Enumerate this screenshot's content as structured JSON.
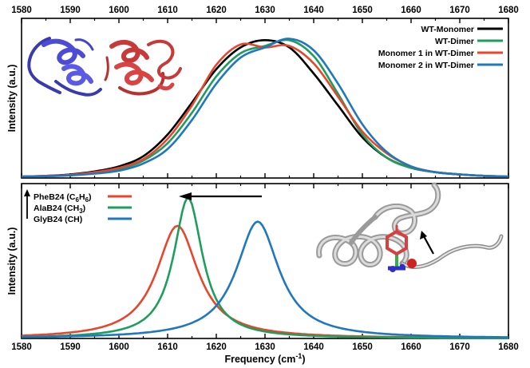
{
  "chart_data": [
    {
      "type": "line",
      "xlim": [
        1580,
        1680
      ],
      "ylim": [
        0,
        1.1
      ],
      "x_ticks": [
        1580,
        1590,
        1600,
        1610,
        1620,
        1630,
        1640,
        1650,
        1660,
        1670,
        1680
      ],
      "x_tick_labels": [
        "1580",
        "1590",
        "1600",
        "1610",
        "1620",
        "1630",
        "1640",
        "1650",
        "1660",
        "1670",
        "1680"
      ],
      "top_tick_labels_shown": true,
      "bottom_tick_labels_shown": false,
      "ylabel": "Intensity (a.u.)",
      "legend_position": "top-right",
      "inset": "protein dimer structure (blue and red ribbons)",
      "series": [
        {
          "name": "WT-Monomer",
          "color": "#000000",
          "x": [
            1580,
            1585,
            1590,
            1595,
            1600,
            1605,
            1610,
            1615,
            1620,
            1625,
            1630,
            1635,
            1640,
            1645,
            1650,
            1655,
            1660,
            1665,
            1670,
            1675,
            1680
          ],
          "y": [
            0.01,
            0.015,
            0.025,
            0.045,
            0.08,
            0.15,
            0.3,
            0.52,
            0.75,
            0.9,
            0.95,
            0.9,
            0.72,
            0.5,
            0.28,
            0.14,
            0.07,
            0.04,
            0.025,
            0.015,
            0.01
          ]
        },
        {
          "name": "WT-Dimer",
          "color": "#1e9e5c",
          "x": [
            1580,
            1585,
            1590,
            1595,
            1600,
            1605,
            1610,
            1615,
            1620,
            1625,
            1630,
            1635,
            1640,
            1645,
            1650,
            1655,
            1660,
            1665,
            1670,
            1675,
            1680
          ],
          "y": [
            0.01,
            0.013,
            0.02,
            0.035,
            0.06,
            0.12,
            0.24,
            0.45,
            0.7,
            0.86,
            0.91,
            0.95,
            0.84,
            0.58,
            0.3,
            0.14,
            0.07,
            0.04,
            0.025,
            0.015,
            0.01
          ]
        },
        {
          "name": "Monomer 1 in WT-Dimer",
          "color": "#e8452c",
          "x": [
            1580,
            1585,
            1590,
            1595,
            1600,
            1605,
            1610,
            1615,
            1620,
            1625,
            1630,
            1635,
            1640,
            1645,
            1650,
            1655,
            1660,
            1665,
            1670,
            1675,
            1680
          ],
          "y": [
            0.01,
            0.015,
            0.022,
            0.04,
            0.07,
            0.13,
            0.27,
            0.5,
            0.78,
            0.92,
            0.9,
            0.91,
            0.79,
            0.56,
            0.32,
            0.17,
            0.08,
            0.04,
            0.025,
            0.015,
            0.01
          ]
        },
        {
          "name": "Monomer 2 in WT-Dimer",
          "color": "#1f77c0",
          "x": [
            1580,
            1585,
            1590,
            1595,
            1600,
            1605,
            1610,
            1615,
            1620,
            1625,
            1630,
            1635,
            1640,
            1645,
            1650,
            1655,
            1660,
            1665,
            1670,
            1675,
            1680
          ],
          "y": [
            0.01,
            0.012,
            0.018,
            0.03,
            0.05,
            0.1,
            0.2,
            0.4,
            0.65,
            0.83,
            0.9,
            0.96,
            0.88,
            0.65,
            0.37,
            0.18,
            0.08,
            0.04,
            0.025,
            0.015,
            0.01
          ]
        }
      ]
    },
    {
      "type": "line",
      "xlim": [
        1580,
        1680
      ],
      "ylim": [
        0,
        1.1
      ],
      "x_ticks": [
        1580,
        1590,
        1600,
        1610,
        1620,
        1630,
        1640,
        1650,
        1660,
        1670,
        1680
      ],
      "x_tick_labels": [
        "1580",
        "1590",
        "1600",
        "1610",
        "1620",
        "1630",
        "1640",
        "1650",
        "1660",
        "1670",
        "1680"
      ],
      "xlabel_main": "Frequency (cm",
      "xlabel_sup": "-1",
      "xlabel_close": ")",
      "ylabel": "Intensity (a.u.)",
      "legend_position": "top-left",
      "annotation": "arrow pointing left indicating red shift",
      "inset": "helix structure with phenyl side chain",
      "series": [
        {
          "name": "PheB24 (C6H6)",
          "label_parts": [
            "PheB24 (C",
            "6",
            "H",
            "6",
            ")"
          ],
          "color": "#e8452c",
          "center": 1612,
          "peak": 0.8,
          "width": 5.2
        },
        {
          "name": "AlaB24 (CH3)",
          "label_parts": [
            "AlaB24 (CH",
            "3",
            ")"
          ],
          "color": "#1e9e5c",
          "center": 1614.2,
          "peak": 1.0,
          "width": 3.6
        },
        {
          "name": "GlyB24 (CH)",
          "label_parts": [
            "GlyB24 (CH)"
          ],
          "color": "#1f77c0",
          "center": 1628.5,
          "peak": 0.83,
          "width": 5.3
        }
      ]
    }
  ]
}
